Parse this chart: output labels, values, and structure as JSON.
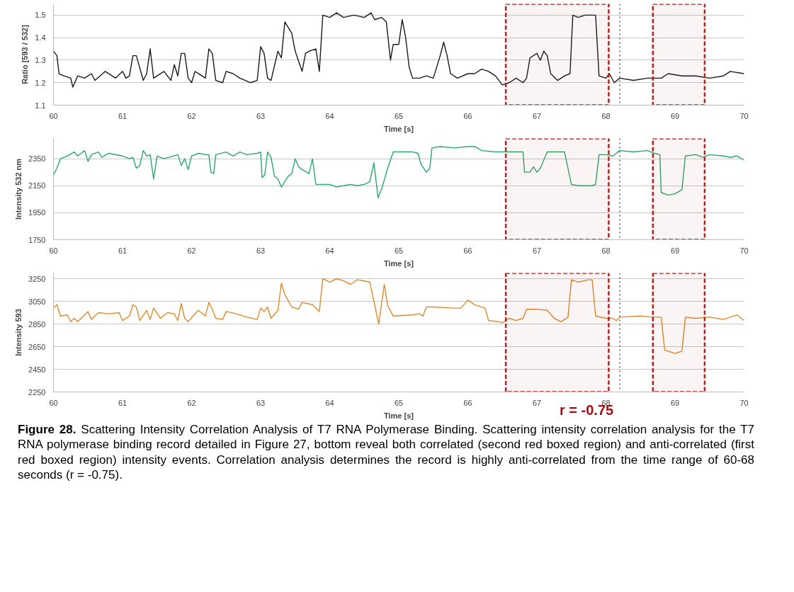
{
  "chart_data": [
    {
      "type": "line",
      "xlabel": "Time [s]",
      "ylabel": "Ratio [593 / 532]",
      "xlim": [
        60,
        70
      ],
      "xticks": [
        60,
        61,
        62,
        63,
        64,
        65,
        66,
        67,
        68,
        69,
        70
      ],
      "ylim": [
        1.1,
        1.55
      ],
      "yticks": [
        1.1,
        1.2,
        1.3,
        1.4,
        1.5
      ],
      "grid": "y",
      "x": [
        60.0,
        60.05,
        60.08,
        60.15,
        60.25,
        60.28,
        60.35,
        60.45,
        60.55,
        60.6,
        60.75,
        60.9,
        61.0,
        61.05,
        61.1,
        61.15,
        61.2,
        61.3,
        61.35,
        61.4,
        61.45,
        61.6,
        61.7,
        61.75,
        61.8,
        61.85,
        61.9,
        61.95,
        62.0,
        62.05,
        62.15,
        62.2,
        62.25,
        62.3,
        62.35,
        62.45,
        62.5,
        62.6,
        62.7,
        62.85,
        62.95,
        63.0,
        63.05,
        63.1,
        63.15,
        63.25,
        63.3,
        63.35,
        63.45,
        63.5,
        63.6,
        63.65,
        63.7,
        63.8,
        63.85,
        63.9,
        64.0,
        64.1,
        64.2,
        64.35,
        64.5,
        64.6,
        64.65,
        64.75,
        64.82,
        64.88,
        64.92,
        65.0,
        65.05,
        65.1,
        65.15,
        65.2,
        65.3,
        65.4,
        65.5,
        65.6,
        65.65,
        65.7,
        65.75,
        65.85,
        66.0,
        66.1,
        66.2,
        66.3,
        66.4,
        66.5,
        66.6,
        66.7,
        66.8,
        66.85,
        66.9,
        67.0,
        67.05,
        67.1,
        67.15,
        67.2,
        67.3,
        67.4,
        67.48,
        67.52,
        67.6,
        67.7,
        67.8,
        67.85,
        67.9,
        68.0,
        68.05,
        68.12,
        68.2,
        68.4,
        68.6,
        68.8,
        68.9,
        69.1,
        69.3,
        69.5,
        69.7,
        69.8,
        70.0
      ],
      "series": [
        {
          "color": "#1a1a1a",
          "values": [
            1.34,
            1.32,
            1.24,
            1.23,
            1.22,
            1.18,
            1.23,
            1.22,
            1.24,
            1.21,
            1.25,
            1.22,
            1.25,
            1.22,
            1.23,
            1.32,
            1.32,
            1.21,
            1.24,
            1.35,
            1.22,
            1.25,
            1.21,
            1.28,
            1.23,
            1.33,
            1.33,
            1.22,
            1.2,
            1.25,
            1.23,
            1.22,
            1.35,
            1.33,
            1.21,
            1.2,
            1.25,
            1.24,
            1.22,
            1.2,
            1.21,
            1.36,
            1.33,
            1.22,
            1.21,
            1.34,
            1.31,
            1.47,
            1.42,
            1.34,
            1.25,
            1.33,
            1.34,
            1.35,
            1.25,
            1.5,
            1.49,
            1.51,
            1.49,
            1.5,
            1.49,
            1.51,
            1.48,
            1.49,
            1.47,
            1.3,
            1.37,
            1.37,
            1.48,
            1.4,
            1.27,
            1.22,
            1.22,
            1.23,
            1.22,
            1.32,
            1.38,
            1.32,
            1.24,
            1.22,
            1.24,
            1.24,
            1.26,
            1.25,
            1.23,
            1.19,
            1.2,
            1.22,
            1.2,
            1.22,
            1.31,
            1.33,
            1.3,
            1.34,
            1.32,
            1.24,
            1.21,
            1.23,
            1.24,
            1.5,
            1.49,
            1.5,
            1.5,
            1.5,
            1.23,
            1.22,
            1.24,
            1.2,
            1.22,
            1.21,
            1.22,
            1.22,
            1.24,
            1.23,
            1.23,
            1.22,
            1.23,
            1.25,
            1.24
          ]
        }
      ],
      "bands": [
        {
          "axis": "x",
          "from": 66.55,
          "to": 68.04,
          "color": "#b22222"
        },
        {
          "axis": "x",
          "from": 68.68,
          "to": 69.43,
          "color": "#b22222"
        }
      ],
      "ref_lines": [
        {
          "axis": "x",
          "value": 68.2,
          "color": "#333333",
          "line_style": "dotted"
        }
      ]
    },
    {
      "type": "line",
      "xlabel": "Time [s]",
      "ylabel": "Intensity 532 nm",
      "xlim": [
        60,
        70
      ],
      "xticks": [
        60,
        61,
        62,
        63,
        64,
        65,
        66,
        67,
        68,
        69,
        70
      ],
      "ylim": [
        1750,
        2500
      ],
      "yticks": [
        1750,
        1950,
        2150,
        2350
      ],
      "grid": "y",
      "x": [
        60.0,
        60.05,
        60.1,
        60.2,
        60.3,
        60.35,
        60.45,
        60.5,
        60.55,
        60.65,
        60.7,
        60.8,
        61.0,
        61.1,
        61.15,
        61.2,
        61.25,
        61.3,
        61.35,
        61.4,
        61.45,
        61.5,
        61.6,
        61.8,
        61.85,
        61.9,
        61.95,
        62.0,
        62.1,
        62.2,
        62.25,
        62.28,
        62.32,
        62.35,
        62.5,
        62.6,
        62.7,
        62.8,
        62.95,
        63.0,
        63.02,
        63.06,
        63.1,
        63.15,
        63.2,
        63.25,
        63.3,
        63.4,
        63.45,
        63.5,
        63.55,
        63.6,
        63.7,
        63.75,
        63.8,
        63.9,
        64.0,
        64.1,
        64.2,
        64.3,
        64.4,
        64.5,
        64.58,
        64.64,
        64.7,
        64.76,
        64.84,
        64.92,
        65.2,
        65.28,
        65.32,
        65.4,
        65.45,
        65.48,
        65.6,
        65.8,
        66.0,
        66.1,
        66.2,
        66.4,
        66.55,
        66.8,
        66.82,
        66.9,
        66.95,
        67.0,
        67.05,
        67.15,
        67.4,
        67.5,
        67.6,
        67.8,
        67.85,
        67.9,
        68.0,
        68.1,
        68.2,
        68.4,
        68.6,
        68.7,
        68.78,
        68.8,
        68.9,
        69.0,
        69.1,
        69.15,
        69.3,
        69.4,
        69.5,
        69.7,
        69.8,
        69.9,
        70.0
      ],
      "series": [
        {
          "color": "#2aa86a",
          "values": [
            2230,
            2280,
            2350,
            2370,
            2400,
            2370,
            2410,
            2330,
            2380,
            2400,
            2360,
            2390,
            2370,
            2350,
            2360,
            2280,
            2300,
            2410,
            2370,
            2380,
            2200,
            2370,
            2350,
            2380,
            2300,
            2350,
            2270,
            2370,
            2390,
            2380,
            2380,
            2250,
            2240,
            2380,
            2400,
            2370,
            2400,
            2380,
            2390,
            2400,
            2210,
            2230,
            2400,
            2360,
            2220,
            2200,
            2140,
            2220,
            2240,
            2350,
            2290,
            2270,
            2240,
            2350,
            2160,
            2160,
            2160,
            2140,
            2150,
            2160,
            2150,
            2160,
            2180,
            2320,
            2060,
            2140,
            2280,
            2400,
            2400,
            2390,
            2310,
            2250,
            2280,
            2430,
            2440,
            2430,
            2440,
            2440,
            2410,
            2400,
            2400,
            2400,
            2250,
            2250,
            2290,
            2250,
            2280,
            2400,
            2400,
            2160,
            2150,
            2150,
            2160,
            2380,
            2380,
            2370,
            2410,
            2400,
            2410,
            2390,
            2380,
            2100,
            2080,
            2090,
            2120,
            2370,
            2380,
            2360,
            2380,
            2370,
            2360,
            2370,
            2340
          ]
        }
      ],
      "bands": [
        {
          "axis": "x",
          "from": 66.55,
          "to": 68.04,
          "color": "#b22222"
        },
        {
          "axis": "x",
          "from": 68.68,
          "to": 69.43,
          "color": "#b22222"
        }
      ],
      "ref_lines": [
        {
          "axis": "x",
          "value": 68.2,
          "color": "#333333",
          "line_style": "dotted"
        }
      ]
    },
    {
      "type": "line",
      "xlabel": "Time [s]",
      "ylabel": "Intensity 593",
      "xlim": [
        60,
        70
      ],
      "xticks": [
        60,
        61,
        62,
        63,
        64,
        65,
        66,
        67,
        68,
        69,
        70
      ],
      "ylim": [
        2250,
        3300
      ],
      "yticks": [
        2250,
        2450,
        2650,
        2850,
        3050,
        3250
      ],
      "grid": "y",
      "x": [
        60.0,
        60.05,
        60.1,
        60.2,
        60.25,
        60.3,
        60.35,
        60.45,
        60.5,
        60.55,
        60.65,
        60.8,
        60.95,
        61.0,
        61.1,
        61.15,
        61.2,
        61.25,
        61.35,
        61.4,
        61.45,
        61.55,
        61.65,
        61.75,
        61.8,
        61.85,
        61.9,
        61.95,
        62.05,
        62.1,
        62.2,
        62.25,
        62.3,
        62.35,
        62.45,
        62.5,
        62.65,
        62.8,
        62.95,
        63.0,
        63.05,
        63.1,
        63.15,
        63.25,
        63.3,
        63.35,
        63.45,
        63.55,
        63.6,
        63.75,
        63.85,
        63.9,
        64.0,
        64.1,
        64.2,
        64.3,
        64.4,
        64.58,
        64.71,
        64.79,
        64.84,
        64.92,
        65.2,
        65.3,
        65.35,
        65.4,
        65.5,
        65.8,
        65.9,
        66.0,
        66.1,
        66.25,
        66.3,
        66.45,
        66.5,
        66.6,
        66.7,
        66.8,
        66.85,
        67.0,
        67.15,
        67.25,
        67.35,
        67.45,
        67.5,
        67.6,
        67.75,
        67.8,
        67.85,
        68.0,
        68.1,
        68.15,
        68.2,
        68.5,
        68.7,
        68.8,
        68.85,
        69.0,
        69.1,
        69.15,
        69.3,
        69.5,
        69.7,
        69.9,
        70.0
      ],
      "series": [
        {
          "color": "#e0892a",
          "values": [
            2990,
            3020,
            2920,
            2930,
            2870,
            2900,
            2870,
            2930,
            2960,
            2890,
            2950,
            2940,
            2950,
            2880,
            2920,
            3020,
            3000,
            2880,
            2970,
            2890,
            2990,
            2900,
            2950,
            2940,
            2880,
            3030,
            2900,
            2870,
            2940,
            2970,
            2920,
            3040,
            2980,
            2900,
            2890,
            2960,
            2940,
            2910,
            2890,
            2990,
            2960,
            3000,
            2900,
            2970,
            3210,
            3110,
            3000,
            2980,
            3040,
            3020,
            2960,
            3250,
            3220,
            3250,
            3230,
            3200,
            3240,
            3220,
            2850,
            3200,
            3010,
            2920,
            2930,
            2940,
            2920,
            3000,
            3000,
            2990,
            2990,
            3060,
            3020,
            2990,
            2880,
            2870,
            2860,
            2900,
            2880,
            2900,
            2980,
            2980,
            2970,
            2900,
            2870,
            2910,
            3240,
            3220,
            3240,
            3240,
            2920,
            2900,
            2900,
            2880,
            2910,
            2920,
            2910,
            2910,
            2620,
            2590,
            2610,
            2910,
            2900,
            2910,
            2890,
            2930,
            2880
          ]
        }
      ],
      "bands": [
        {
          "axis": "x",
          "from": 66.55,
          "to": 68.04,
          "color": "#b22222"
        },
        {
          "axis": "x",
          "from": 68.68,
          "to": 69.43,
          "color": "#b22222"
        }
      ],
      "ref_lines": [
        {
          "axis": "x",
          "value": 68.2,
          "color": "#333333",
          "line_style": "dotted"
        }
      ],
      "annotations": [
        "r = -0.75",
        "Figure 28.",
        "Scattering Intensity Correlation Analysis of T7 RNA Polymerase Binding. Scattering intensity correlation analysis for the T7 RNA polymerase binding record detailed in Figure 27, bottom reveal both correlated (second red boxed region) and anti-correlated (first red boxed region) intensity events. Correlation analysis determines the record is highly anti-correlated from the time range of 60-68 seconds (r = -0.75)."
      ]
    }
  ]
}
